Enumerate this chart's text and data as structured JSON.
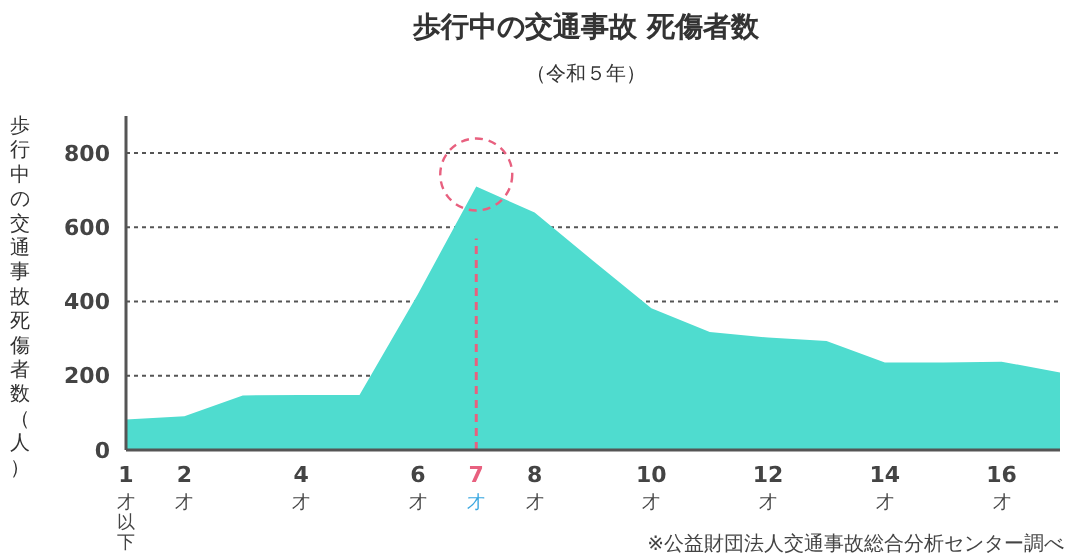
{
  "chart_data": {
    "type": "area",
    "title": "歩行中の交通事故 死傷者数",
    "subtitle": "（令和５年）",
    "ylabel": "歩行中の交通事故死傷者数（人）",
    "x": [
      1,
      2,
      3,
      4,
      5,
      6,
      7,
      8,
      9,
      10,
      11,
      12,
      13,
      14,
      15,
      16,
      17
    ],
    "series": [
      {
        "color": "#4fdccf",
        "values": [
          82,
          91,
          147,
          148,
          148,
          420,
          710,
          640,
          510,
          382,
          318,
          303,
          294,
          236,
          236,
          238,
          209
        ]
      }
    ],
    "xlim": [
      1,
      17
    ],
    "xticks": [
      {
        "value": 1,
        "label": "1才以下"
      },
      {
        "value": 2,
        "label": "2才"
      },
      {
        "value": 4,
        "label": "4才"
      },
      {
        "value": 6,
        "label": "6才"
      },
      {
        "value": 7,
        "label": "7才"
      },
      {
        "value": 8,
        "label": "8才"
      },
      {
        "value": 10,
        "label": "10才"
      },
      {
        "value": 12,
        "label": "12才"
      },
      {
        "value": 14,
        "label": "14才"
      },
      {
        "value": 16,
        "label": "16才"
      }
    ],
    "ylim": [
      0,
      900
    ],
    "yticks": [
      0,
      200,
      400,
      600,
      800
    ],
    "grid": "y",
    "ref_lines": [
      {
        "axis": "x",
        "value": 7,
        "color": "#e8607f",
        "line_style": "dashed"
      }
    ],
    "annotations": [
      "※公益財団法人交通事故総合分析センター調べ"
    ]
  }
}
